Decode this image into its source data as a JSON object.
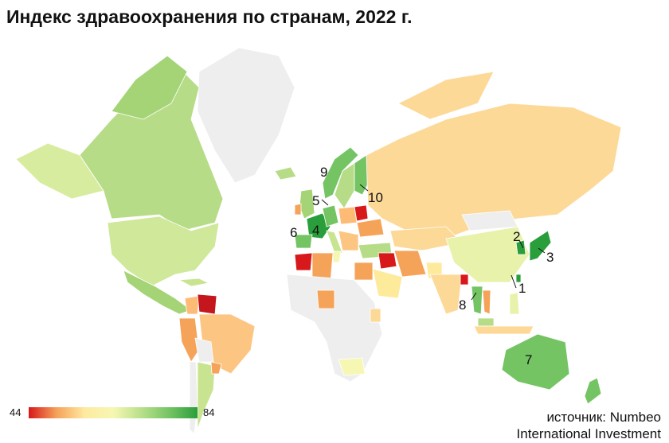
{
  "title": "Индекс здравоохранения по странам, 2022 г.",
  "legend": {
    "min": "44",
    "max": "84",
    "colors": [
      "#d7191c",
      "#f6a35a",
      "#fdeaa0",
      "#f7f7b4",
      "#b8e08a",
      "#74c464",
      "#2a9e3b"
    ]
  },
  "source": {
    "line1": "источник: Numbeo",
    "line2": "International Investment"
  },
  "ranks": [
    "1",
    "2",
    "3",
    "4",
    "5",
    "6",
    "7",
    "8",
    "9",
    "10"
  ],
  "colors": {
    "no_data": "#eeeeee",
    "border": "#ffffff"
  }
}
